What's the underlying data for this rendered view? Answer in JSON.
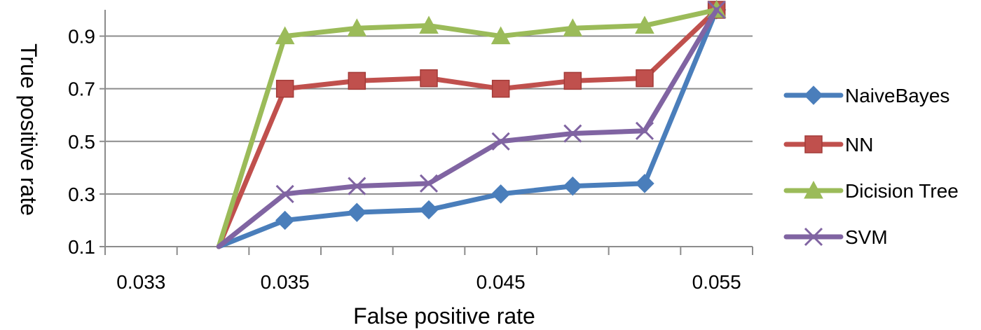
{
  "chart_data": {
    "type": "line",
    "title": "",
    "xlabel": "False positive rate",
    "ylabel": "True positive rate",
    "categories": [
      "0.033",
      "",
      "0.035",
      "",
      "",
      "0.045",
      "",
      "",
      "0.055"
    ],
    "xtick_labels": [
      "0.033",
      "0.035",
      "0.045",
      "0.055"
    ],
    "yticks": [
      0.1,
      0.3,
      0.5,
      0.7,
      0.9
    ],
    "ytick_labels": [
      "0.1",
      "0.3",
      "0.5",
      "0.7",
      "0.9"
    ],
    "ylim": [
      0.1,
      1.0
    ],
    "grid": "horizontal",
    "legend_position": "right",
    "series": [
      {
        "name": "NaiveBayes",
        "color": "#4A7EBB",
        "marker": "diamond",
        "points": [
          [
            1.58,
            0.1
          ],
          [
            2.5,
            0.2
          ],
          [
            3.5,
            0.23
          ],
          [
            4.5,
            0.24
          ],
          [
            5.5,
            0.3
          ],
          [
            6.5,
            0.33
          ],
          [
            7.5,
            0.34
          ],
          [
            8.5,
            1.0
          ]
        ]
      },
      {
        "name": "NN",
        "color": "#C0504D",
        "marker": "square",
        "points": [
          [
            1.58,
            0.1
          ],
          [
            2.5,
            0.7
          ],
          [
            3.5,
            0.73
          ],
          [
            4.5,
            0.74
          ],
          [
            5.5,
            0.7
          ],
          [
            6.5,
            0.73
          ],
          [
            7.5,
            0.74
          ],
          [
            8.5,
            1.0
          ]
        ]
      },
      {
        "name": "Dicision Tree",
        "color": "#9BBB59",
        "marker": "triangle",
        "points": [
          [
            1.58,
            0.1
          ],
          [
            2.5,
            0.9
          ],
          [
            3.5,
            0.93
          ],
          [
            4.5,
            0.94
          ],
          [
            5.5,
            0.9
          ],
          [
            6.5,
            0.93
          ],
          [
            7.5,
            0.94
          ],
          [
            8.5,
            1.0
          ]
        ]
      },
      {
        "name": "SVM",
        "color": "#8064A2",
        "marker": "x",
        "points": [
          [
            1.58,
            0.1
          ],
          [
            2.5,
            0.3
          ],
          [
            3.5,
            0.33
          ],
          [
            4.5,
            0.34
          ],
          [
            5.5,
            0.5
          ],
          [
            6.5,
            0.53
          ],
          [
            7.5,
            0.54
          ],
          [
            8.5,
            1.0
          ]
        ]
      }
    ]
  }
}
